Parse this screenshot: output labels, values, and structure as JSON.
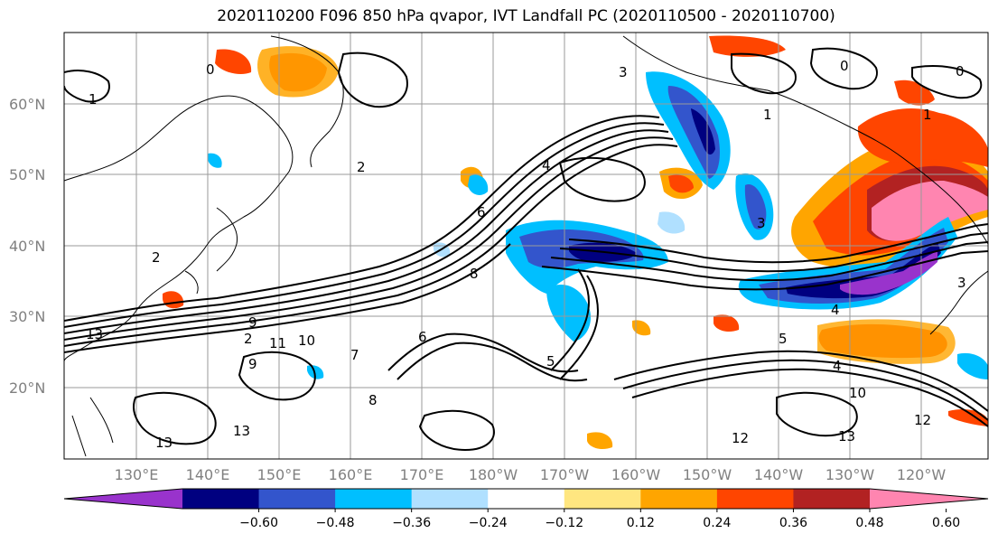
{
  "title": "2020110200 F096 850 hPa qvapor, IVT Landfall PC (2020110500 - 2020110700)",
  "map": {
    "lat_labels": [
      "60°N",
      "50°N",
      "40°N",
      "30°N",
      "20°N"
    ],
    "lon_labels": [
      "130°E",
      "140°E",
      "150°E",
      "160°E",
      "170°E",
      "180°W",
      "170°W",
      "160°W",
      "150°W",
      "140°W",
      "130°W",
      "120°W"
    ],
    "contour_labels": [
      "1",
      "0",
      "3",
      "1",
      "2",
      "4",
      "2",
      "6",
      "8",
      "4",
      "3",
      "2",
      "9",
      "13",
      "11",
      "10",
      "9",
      "8",
      "5",
      "7",
      "6",
      "4",
      "5",
      "13",
      "13",
      "12",
      "13",
      "12",
      "10",
      "3",
      "1",
      "0",
      "0"
    ]
  },
  "colorbar": {
    "colors": [
      "#9933cc",
      "#000080",
      "#3355cc",
      "#00bfff",
      "#b0e0ff",
      "#ffffff",
      "#ffe680",
      "#ffa500",
      "#ff4500",
      "#b22222",
      "#ff85b0"
    ],
    "tick_labels": [
      "−0.60",
      "−0.48",
      "−0.36",
      "−0.24",
      "−0.12",
      "0.12",
      "0.24",
      "0.36",
      "0.48",
      "0.60"
    ]
  }
}
